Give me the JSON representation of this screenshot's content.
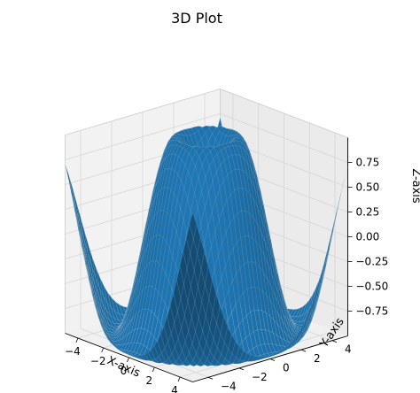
{
  "chart_data": {
    "type": "surface",
    "title": "3D Plot",
    "xlabel": "X-axis",
    "ylabel": "Y-axis",
    "zlabel": "Z-axis",
    "x_ticks": [
      -4,
      -2,
      0,
      2,
      4
    ],
    "y_ticks": [
      -4,
      -2,
      0,
      2,
      4
    ],
    "z_ticks": [
      0.75,
      0.5,
      0.25,
      0.0,
      -0.25,
      -0.5,
      -0.75
    ],
    "x_tick_labels": [
      "−4",
      "−2",
      "0",
      "2",
      "4"
    ],
    "y_tick_labels": [
      "−4",
      "−2",
      "0",
      "2",
      "4"
    ],
    "z_tick_labels": [
      "0.75",
      "0.50",
      "0.25",
      "0.00",
      "−0.25",
      "−0.50",
      "−0.75"
    ],
    "xlim": [
      -5,
      5
    ],
    "ylim": [
      -5,
      5
    ],
    "zlim": [
      -1,
      1
    ],
    "function": "z = sin(sqrt(x^2 + y^2))",
    "grid": true,
    "colors": {
      "surface": "#1f77b4",
      "edge": "#ffffff",
      "pane": "#f2f2f2",
      "grid": "#d6d6d6"
    }
  }
}
